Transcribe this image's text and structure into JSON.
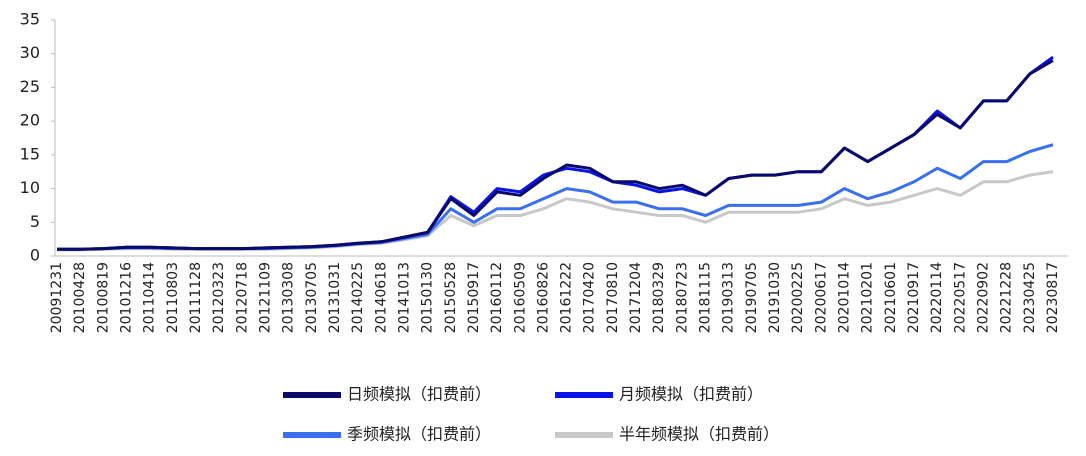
{
  "chart_data": {
    "type": "line",
    "categories": [
      "20091231",
      "20100428",
      "20100819",
      "20101216",
      "20110414",
      "20110803",
      "20111128",
      "20120323",
      "20120718",
      "20121109",
      "20130308",
      "20130705",
      "20131031",
      "20140225",
      "20140618",
      "20141013",
      "20150130",
      "20150528",
      "20150917",
      "20160112",
      "20160509",
      "20160826",
      "20161222",
      "20170420",
      "20170810",
      "20171204",
      "20180329",
      "20180723",
      "20181115",
      "20190313",
      "20190705",
      "20191030",
      "20200225",
      "20200617",
      "20201014",
      "20210201",
      "20210601",
      "20210917",
      "20220114",
      "20220517",
      "20220902",
      "20221228",
      "20230425",
      "20230817"
    ],
    "series": [
      {
        "name": "日频模拟（扣费前）",
        "color": "#0a0a6b",
        "values": [
          1,
          1,
          1.1,
          1.3,
          1.3,
          1.2,
          1.1,
          1.1,
          1.1,
          1.2,
          1.3,
          1.4,
          1.6,
          1.9,
          2.1,
          2.8,
          3.5,
          8.5,
          6,
          9.5,
          9,
          11.5,
          13.5,
          13,
          11,
          11,
          10,
          10.5,
          9,
          11.5,
          12,
          12,
          12.5,
          12.5,
          16,
          14,
          16,
          18,
          21,
          19,
          23,
          23,
          27,
          29
        ]
      },
      {
        "name": "月频模拟（扣费前）",
        "color": "#0a14e8",
        "values": [
          1,
          1,
          1.1,
          1.3,
          1.3,
          1.2,
          1.1,
          1.1,
          1.1,
          1.2,
          1.3,
          1.4,
          1.6,
          1.9,
          2.1,
          2.8,
          3.5,
          8.8,
          6.5,
          10,
          9.5,
          12,
          13,
          12.5,
          11,
          10.5,
          9.5,
          10,
          9,
          11.5,
          12,
          12,
          12.5,
          12.5,
          16,
          14,
          16,
          18,
          21.5,
          19,
          23,
          23,
          27,
          29.5
        ]
      },
      {
        "name": "季频模拟（扣费前）",
        "color": "#3a6ff0",
        "values": [
          1,
          1,
          1.1,
          1.2,
          1.2,
          1.1,
          1.1,
          1.1,
          1.1,
          1.1,
          1.2,
          1.3,
          1.5,
          1.8,
          2,
          2.6,
          3.2,
          7,
          5,
          7,
          7,
          8.5,
          10,
          9.5,
          8,
          8,
          7,
          7,
          6,
          7.5,
          7.5,
          7.5,
          7.5,
          8,
          10,
          8.5,
          9.5,
          11,
          13,
          11.5,
          14,
          14,
          15.5,
          16.5
        ]
      },
      {
        "name": "半年频模拟（扣费前）",
        "color": "#c8c8c8",
        "values": [
          0.9,
          0.9,
          1,
          1.1,
          1.1,
          1,
          1,
          1,
          1,
          1,
          1.1,
          1.2,
          1.4,
          1.7,
          1.9,
          2.4,
          3,
          6,
          4.5,
          6,
          6,
          7,
          8.5,
          8,
          7,
          6.5,
          6,
          6,
          5,
          6.5,
          6.5,
          6.5,
          6.5,
          7,
          8.5,
          7.5,
          8,
          9,
          10,
          9,
          11,
          11,
          12,
          12.5
        ]
      }
    ],
    "ylim": [
      0,
      35
    ],
    "yticks": [
      0,
      5,
      10,
      15,
      20,
      25,
      30,
      35
    ],
    "grid": false
  }
}
